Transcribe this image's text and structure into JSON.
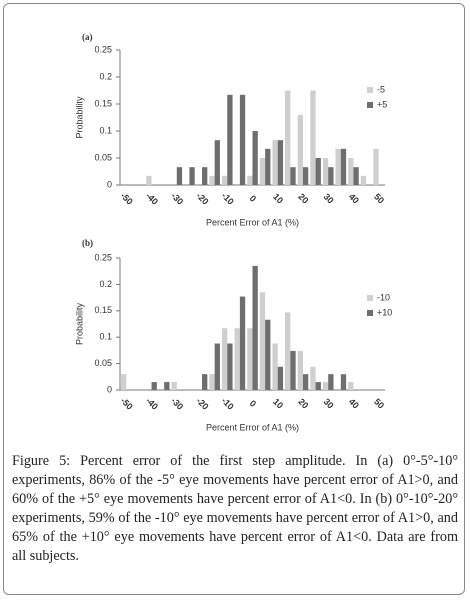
{
  "chart_data": [
    {
      "type": "bar",
      "panel": "(a)",
      "y_label": "Probability",
      "x_label": "Percent Error of A1 (%)",
      "categories": [
        "-50",
        null,
        "-40",
        null,
        "-30",
        null,
        "-20",
        null,
        "-10",
        null,
        "0",
        null,
        "10",
        null,
        "20",
        null,
        "30",
        null,
        "40",
        null,
        "50"
      ],
      "series": [
        {
          "name": "-5",
          "color": "#cfcfcf",
          "values": [
            0,
            0,
            0.017,
            0,
            0,
            0,
            0,
            0.017,
            0.017,
            0,
            0.017,
            0.05,
            0.083,
            0.175,
            0.13,
            0.175,
            0.05,
            0.067,
            0.05,
            0.017,
            0.067
          ]
        },
        {
          "name": "+5",
          "color": "#6e6e6e",
          "values": [
            0,
            0,
            0,
            0,
            0.033,
            0.033,
            0.033,
            0.083,
            0.167,
            0.167,
            0.1,
            0.067,
            0.083,
            0.033,
            0.033,
            0.05,
            0.033,
            0.067,
            0.033,
            0,
            0
          ]
        }
      ],
      "ylim": [
        0,
        0.25
      ],
      "yticks": [
        0,
        0.05,
        0.1,
        0.15,
        0.2,
        0.25
      ],
      "legend": "right"
    },
    {
      "type": "bar",
      "panel": "(b)",
      "y_label": "Probability",
      "x_label": "Percent Error of A1 (%)",
      "categories": [
        "-50",
        null,
        "-40",
        null,
        "-30",
        null,
        "-20",
        null,
        "-10",
        null,
        "0",
        null,
        "10",
        null,
        "20",
        null,
        "30",
        null,
        "40",
        null,
        "50"
      ],
      "series": [
        {
          "name": "-10",
          "color": "#cfcfcf",
          "values": [
            0.03,
            0,
            0,
            0,
            0.015,
            0,
            0,
            0.03,
            0.117,
            0.117,
            0.117,
            0.185,
            0.088,
            0.147,
            0.074,
            0.044,
            0.015,
            0,
            0.015,
            0,
            0
          ]
        },
        {
          "name": "+10",
          "color": "#6e6e6e",
          "values": [
            0,
            0,
            0.015,
            0.015,
            0,
            0,
            0.03,
            0.088,
            0.088,
            0.177,
            0.235,
            0.133,
            0.044,
            0.074,
            0.03,
            0.015,
            0.03,
            0.03,
            0,
            0,
            0
          ]
        }
      ],
      "ylim": [
        0,
        0.25
      ],
      "yticks": [
        0,
        0.05,
        0.1,
        0.15,
        0.2,
        0.25
      ],
      "legend": "right"
    }
  ],
  "caption": {
    "label": "Figure 5:",
    "text": "Percent error of the first step amplitude. In (a) 0°-5°-10° experiments, 86% of the -5° eye movements have percent error of A1>0, and 60% of the +5° eye movements have percent error of A1<0. In (b) 0°-10°-20° experiments, 59% of the -10° eye movements have percent error of A1>0, and 65% of the +10° eye movements have percent error of A1<0. Data are from all subjects."
  }
}
